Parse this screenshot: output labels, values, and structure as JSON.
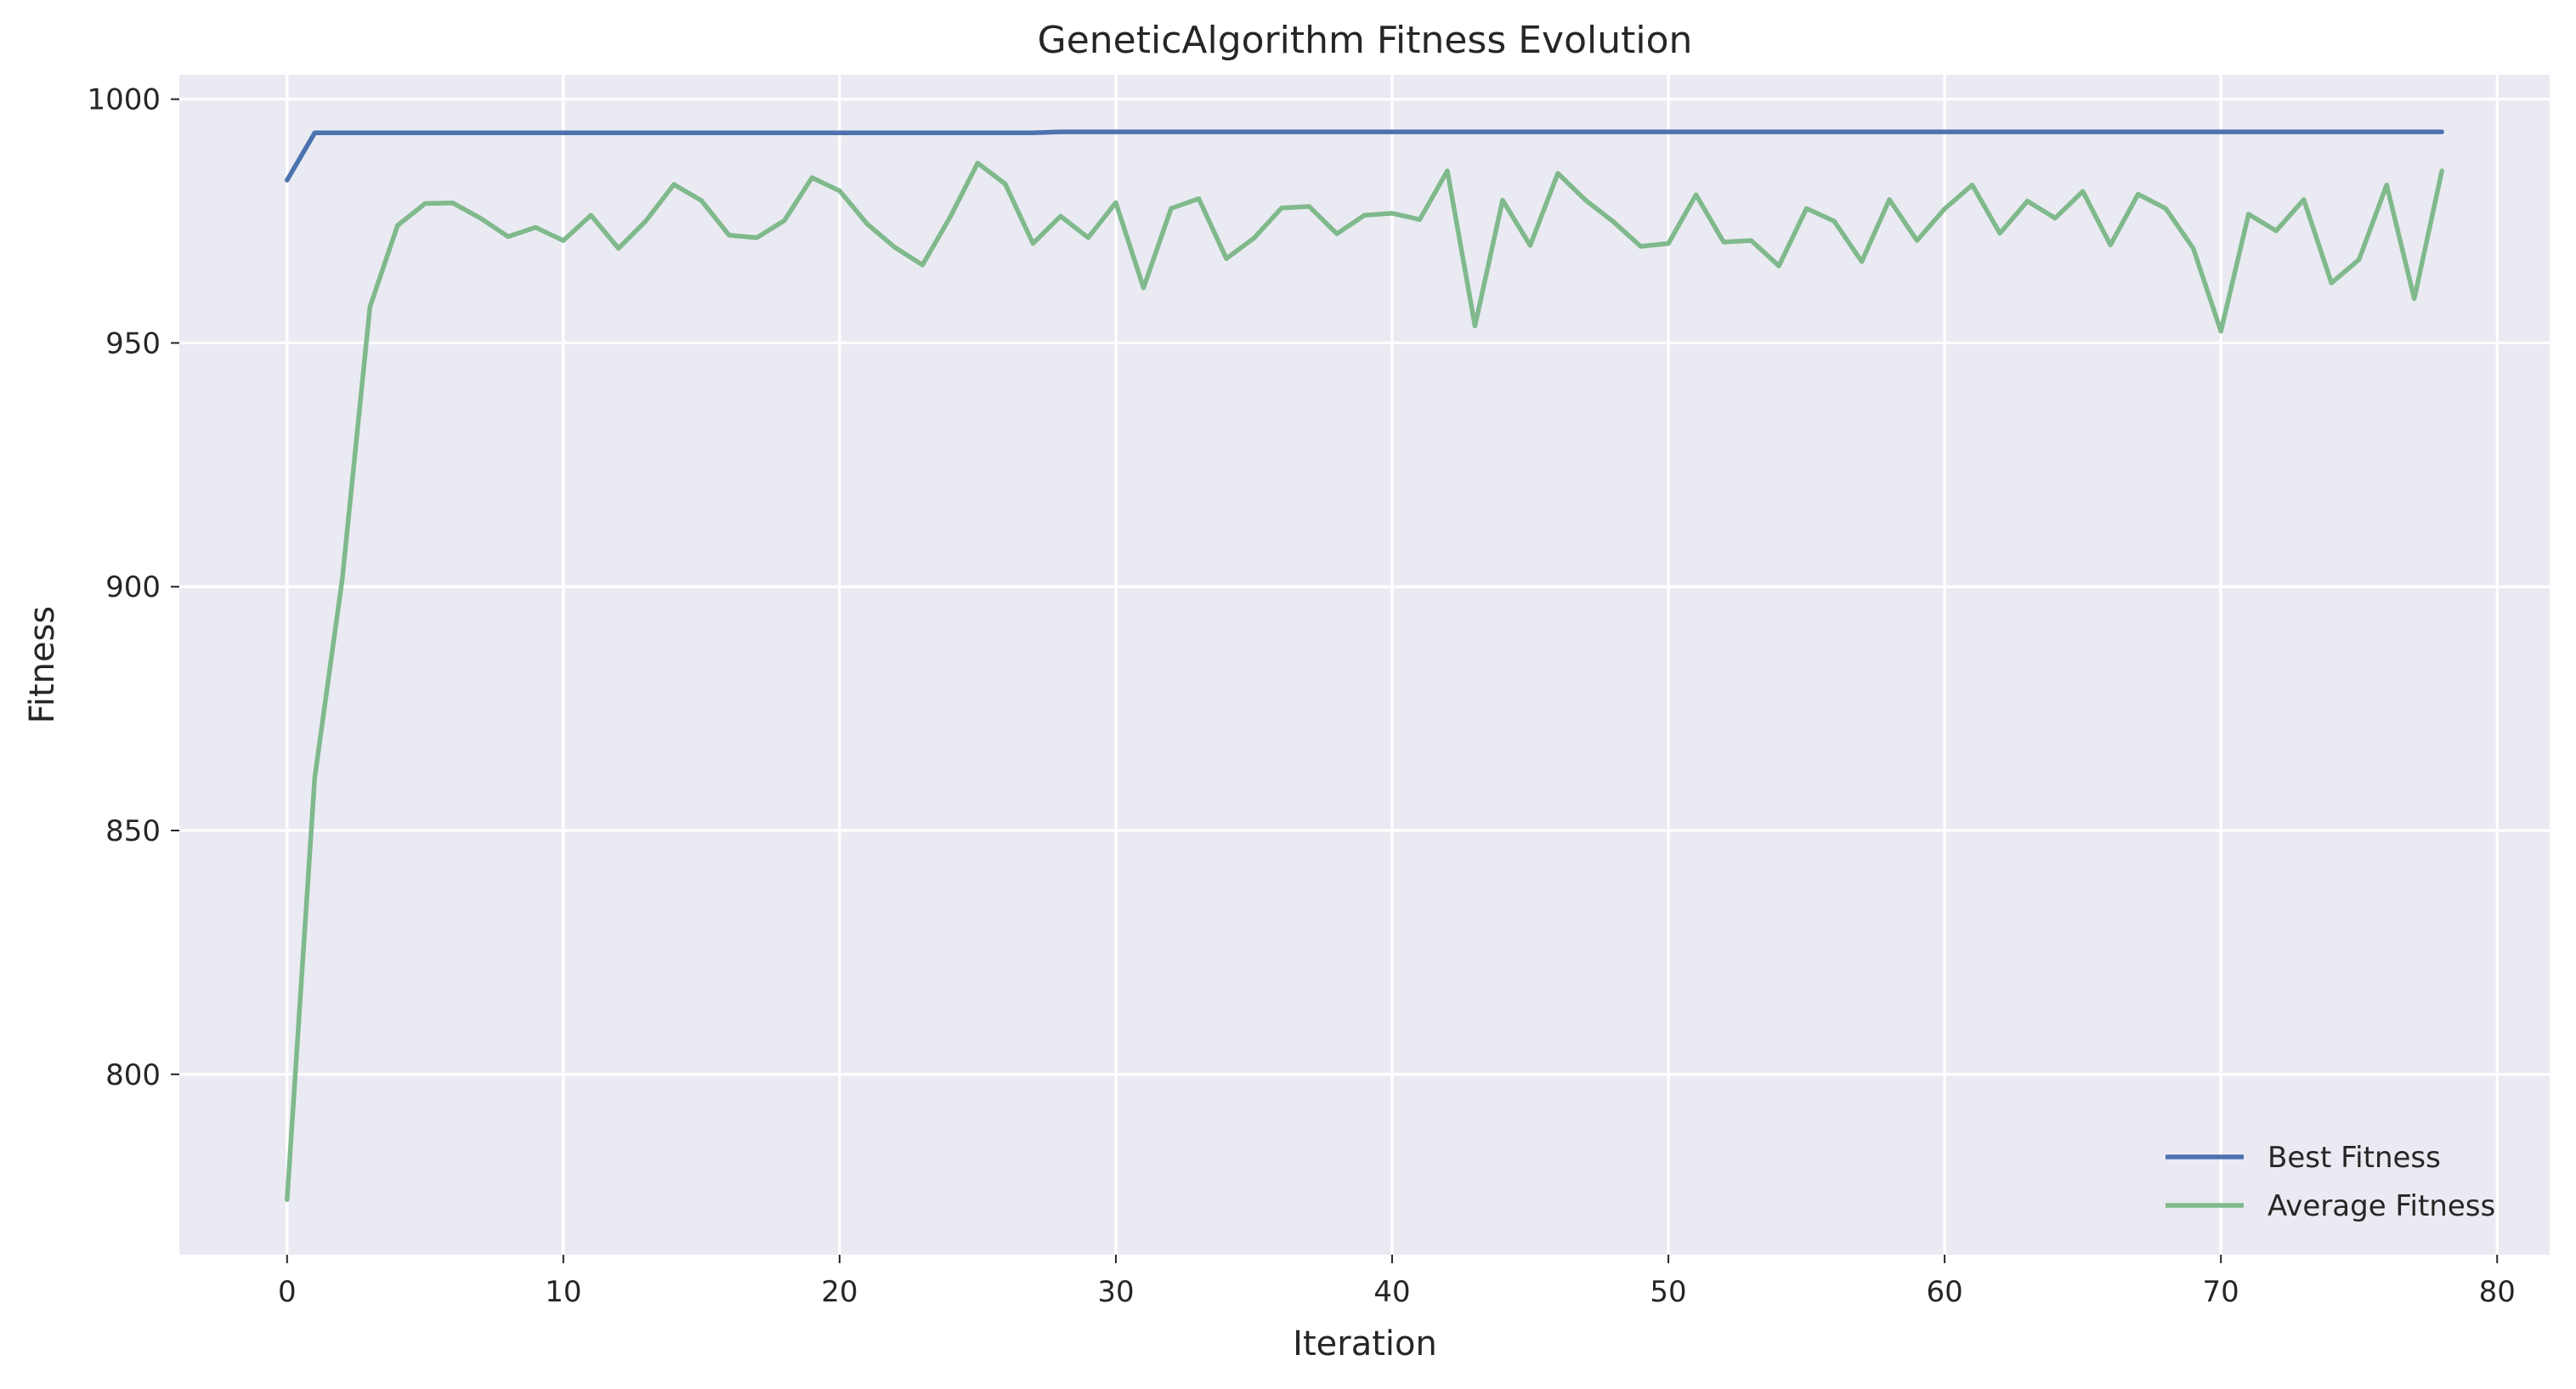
{
  "chart_data": {
    "type": "line",
    "title": "GeneticAlgorithm Fitness Evolution",
    "xlabel": "Iteration",
    "ylabel": "Fitness",
    "xlim": [
      -3.9,
      81.9
    ],
    "ylim": [
      763,
      1005
    ],
    "xticks": [
      0,
      10,
      20,
      30,
      40,
      50,
      60,
      70,
      80
    ],
    "yticks": [
      800,
      850,
      900,
      950,
      1000
    ],
    "grid": true,
    "legend_position": "bottom-right",
    "series": [
      {
        "name": "Best Fitness",
        "color": "#4c72b0",
        "values": [
          983.4,
          993.1,
          993.1,
          993.1,
          993.1,
          993.1,
          993.1,
          993.1,
          993.1,
          993.1,
          993.1,
          993.1,
          993.1,
          993.1,
          993.1,
          993.1,
          993.1,
          993.1,
          993.1,
          993.1,
          993.1,
          993.1,
          993.1,
          993.1,
          993.1,
          993.1,
          993.1,
          993.1,
          993.3,
          993.3,
          993.3,
          993.3,
          993.3,
          993.3,
          993.3,
          993.3,
          993.3,
          993.3,
          993.3,
          993.3,
          993.3,
          993.3,
          993.3,
          993.3,
          993.3,
          993.3,
          993.3,
          993.3,
          993.3,
          993.3,
          993.3,
          993.3,
          993.3,
          993.3,
          993.3,
          993.3,
          993.3,
          993.3,
          993.3,
          993.3,
          993.3,
          993.3,
          993.3,
          993.3,
          993.3,
          993.3,
          993.3,
          993.3,
          993.3,
          993.3,
          993.3,
          993.3,
          993.3,
          993.3,
          993.3,
          993.3,
          993.3,
          993.3,
          993.3
        ]
      },
      {
        "name": "Average Fitness",
        "color": "#7fb98c",
        "values": [
          774.3,
          860.8,
          901.7,
          957.4,
          974.1,
          978.6,
          978.7,
          975.6,
          971.8,
          973.7,
          971.0,
          976.2,
          969.4,
          975.1,
          982.5,
          979.2,
          972.1,
          971.6,
          975.1,
          983.9,
          981.2,
          974.4,
          969.6,
          966.0,
          975.8,
          986.9,
          982.6,
          970.4,
          976.0,
          971.6,
          978.8,
          961.3,
          977.6,
          979.6,
          967.3,
          971.5,
          977.7,
          978.0,
          972.4,
          976.2,
          976.6,
          975.3,
          985.3,
          953.5,
          979.3,
          970.0,
          984.8,
          979.3,
          974.9,
          969.8,
          970.4,
          980.4,
          970.7,
          971.0,
          965.8,
          977.6,
          975.0,
          966.7,
          979.4,
          971.0,
          977.5,
          982.4,
          972.5,
          979.1,
          975.6,
          981.1,
          970.1,
          980.5,
          977.6,
          969.4,
          952.4,
          976.4,
          973.0,
          979.4,
          962.3,
          967.1,
          982.4,
          959.1,
          985.3
        ]
      }
    ]
  }
}
